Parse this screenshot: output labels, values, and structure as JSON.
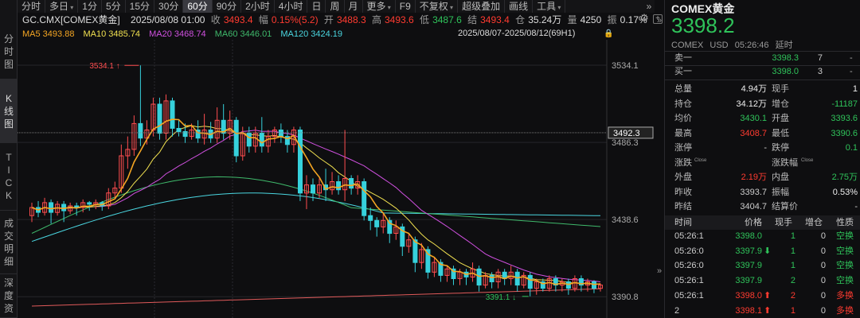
{
  "vtabs": [
    {
      "label": "分时图",
      "chars": [
        "分",
        "时",
        "图"
      ],
      "active": false
    },
    {
      "label": "K线图",
      "chars": [
        "K",
        "线",
        "图"
      ],
      "active": true
    },
    {
      "label": "TICK",
      "chars": [
        "T",
        "I",
        "C",
        "K"
      ],
      "active": false
    },
    {
      "label": "成交明细",
      "chars": [
        "成",
        "交",
        "明",
        "细"
      ],
      "active": false
    },
    {
      "label": "深度资",
      "chars": [
        "深",
        "度",
        "资"
      ],
      "active": false
    }
  ],
  "toolbar": {
    "items": [
      {
        "label": "分时",
        "active": false
      },
      {
        "label": "多日",
        "active": false,
        "caret": true
      },
      {
        "label": "1分",
        "active": false
      },
      {
        "label": "5分",
        "active": false
      },
      {
        "label": "15分",
        "active": false
      },
      {
        "label": "30分",
        "active": false
      },
      {
        "label": "60分",
        "active": true
      },
      {
        "label": "90分",
        "active": false
      },
      {
        "label": "2小时",
        "active": false
      },
      {
        "label": "4小时",
        "active": false
      },
      {
        "label": "日",
        "active": false
      },
      {
        "label": "周",
        "active": false
      },
      {
        "label": "月",
        "active": false
      },
      {
        "label": "更多",
        "active": false,
        "caret": true
      },
      {
        "label": "F9",
        "active": false
      },
      {
        "label": "不复权",
        "active": false,
        "caret": true
      },
      {
        "label": "超级叠加",
        "active": false
      },
      {
        "label": "画线",
        "active": false
      },
      {
        "label": "工具",
        "active": false,
        "caret": true
      }
    ],
    "more_icon": "»"
  },
  "info": {
    "symbol": "GC.CMX[COMEX黄金]",
    "datetime": "2025/08/08 01:00",
    "close_label": "收",
    "close": "3493.4",
    "change_label": "幅",
    "change": "0.15%(5.2)",
    "open_label": "开",
    "open": "3488.3",
    "high_label": "高",
    "high": "3493.6",
    "low_label": "低",
    "low": "3487.6",
    "last_label": "结",
    "last": "3493.4",
    "oi_label": "仓",
    "oi": "35.24万",
    "vol_label": "量",
    "vol": "4250",
    "amp_label": "振",
    "amp": "0.17%",
    "settings_icon": "gear-icon",
    "add_icon": "plus-box-icon"
  },
  "ma": {
    "ma5": "MA5 3493.88",
    "ma10": "MA10 3485.74",
    "ma20": "MA20 3468.74",
    "ma60": "MA60 3446.01",
    "ma120": "MA120 3424.19",
    "range": "2025/08/07-2025/08/12(69H1)",
    "colors": {
      "ma5": "#f5a623",
      "ma10": "#f0e050",
      "ma20": "#d050e0",
      "ma60": "#3fb96b",
      "ma120": "#4ad6e0"
    }
  },
  "chart_data": {
    "type": "candlestick",
    "y_axis_labels": [
      "3534.1",
      "3486.3",
      "3438.6",
      "3390.8"
    ],
    "current_price_tag": "3492.3",
    "high_marker": "3534.1",
    "low_marker": "3391.1",
    "ylim": [
      3385,
      3540
    ],
    "candles": [
      [
        3441,
        3446,
        3437,
        3449
      ],
      [
        3446,
        3443,
        3440,
        3450
      ],
      [
        3443,
        3449,
        3441,
        3452
      ],
      [
        3449,
        3443,
        3436,
        3451
      ],
      [
        3443,
        3448,
        3441,
        3450
      ],
      [
        3448,
        3444,
        3437,
        3450
      ],
      [
        3444,
        3447,
        3442,
        3449
      ],
      [
        3447,
        3446,
        3441,
        3449
      ],
      [
        3446,
        3449,
        3443,
        3451
      ],
      [
        3449,
        3448,
        3444,
        3450
      ],
      [
        3448,
        3449,
        3445,
        3451
      ],
      [
        3449,
        3447,
        3444,
        3450
      ],
      [
        3447,
        3455,
        3445,
        3458
      ],
      [
        3455,
        3458,
        3452,
        3462
      ],
      [
        3458,
        3478,
        3455,
        3485
      ],
      [
        3478,
        3482,
        3470,
        3490
      ],
      [
        3482,
        3498,
        3478,
        3503
      ],
      [
        3498,
        3489,
        3484,
        3534
      ],
      [
        3489,
        3494,
        3485,
        3500
      ],
      [
        3494,
        3510,
        3490,
        3514
      ],
      [
        3510,
        3492,
        3488,
        3514
      ],
      [
        3492,
        3512,
        3488,
        3516
      ],
      [
        3512,
        3495,
        3490,
        3514
      ],
      [
        3495,
        3493,
        3490,
        3500
      ],
      [
        3493,
        3490,
        3486,
        3498
      ],
      [
        3490,
        3494,
        3488,
        3498
      ],
      [
        3494,
        3489,
        3486,
        3500
      ],
      [
        3489,
        3494,
        3485,
        3504
      ],
      [
        3494,
        3489,
        3486,
        3499
      ],
      [
        3489,
        3500,
        3486,
        3508
      ],
      [
        3500,
        3492,
        3488,
        3510
      ],
      [
        3492,
        3500,
        3488,
        3506
      ],
      [
        3500,
        3478,
        3474,
        3502
      ],
      [
        3478,
        3492,
        3475,
        3496
      ],
      [
        3492,
        3484,
        3480,
        3496
      ],
      [
        3484,
        3492,
        3480,
        3496
      ],
      [
        3492,
        3484,
        3480,
        3502
      ],
      [
        3484,
        3490,
        3480,
        3494
      ],
      [
        3490,
        3494,
        3486,
        3496
      ],
      [
        3494,
        3490,
        3486,
        3498
      ],
      [
        3490,
        3485,
        3480,
        3494
      ],
      [
        3485,
        3494,
        3480,
        3496
      ],
      [
        3494,
        3455,
        3450,
        3496
      ],
      [
        3455,
        3460,
        3445,
        3466
      ],
      [
        3460,
        3455,
        3450,
        3464
      ],
      [
        3455,
        3460,
        3452,
        3464
      ],
      [
        3460,
        3457,
        3450,
        3470
      ],
      [
        3457,
        3462,
        3454,
        3468
      ],
      [
        3462,
        3457,
        3454,
        3466
      ],
      [
        3457,
        3464,
        3450,
        3494
      ],
      [
        3464,
        3458,
        3454,
        3466
      ],
      [
        3458,
        3462,
        3454,
        3466
      ],
      [
        3462,
        3441,
        3438,
        3464
      ],
      [
        3441,
        3438,
        3432,
        3446
      ],
      [
        3438,
        3434,
        3428,
        3440
      ],
      [
        3434,
        3438,
        3430,
        3442
      ],
      [
        3438,
        3430,
        3424,
        3440
      ],
      [
        3430,
        3434,
        3426,
        3438
      ],
      [
        3434,
        3422,
        3416,
        3436
      ],
      [
        3422,
        3426,
        3418,
        3430
      ],
      [
        3426,
        3412,
        3406,
        3428
      ],
      [
        3412,
        3420,
        3408,
        3424
      ],
      [
        3420,
        3406,
        3402,
        3422
      ],
      [
        3406,
        3412,
        3403,
        3415
      ],
      [
        3412,
        3404,
        3400,
        3414
      ],
      [
        3404,
        3408,
        3400,
        3410
      ],
      [
        3408,
        3402,
        3398,
        3410
      ],
      [
        3402,
        3406,
        3398,
        3408
      ],
      [
        3406,
        3403,
        3398,
        3408
      ],
      [
        3403,
        3408,
        3400,
        3412
      ],
      [
        3408,
        3398,
        3394,
        3410
      ],
      [
        3398,
        3404,
        3396,
        3406
      ],
      [
        3404,
        3400,
        3396,
        3406
      ],
      [
        3400,
        3406,
        3396,
        3408
      ],
      [
        3406,
        3402,
        3398,
        3408
      ],
      [
        3402,
        3406,
        3398,
        3410
      ],
      [
        3406,
        3398,
        3394,
        3408
      ],
      [
        3398,
        3404,
        3396,
        3406
      ],
      [
        3404,
        3396,
        3391,
        3406
      ],
      [
        3396,
        3400,
        3392,
        3402
      ],
      [
        3400,
        3396,
        3394,
        3402
      ],
      [
        3396,
        3402,
        3394,
        3404
      ],
      [
        3402,
        3398,
        3394,
        3404
      ],
      [
        3398,
        3400,
        3394,
        3402
      ],
      [
        3400,
        3396,
        3392,
        3402
      ],
      [
        3396,
        3402,
        3394,
        3404
      ],
      [
        3402,
        3398,
        3394,
        3404
      ],
      [
        3398,
        3400,
        3394,
        3402
      ],
      [
        3400,
        3396,
        3393,
        3401
      ],
      [
        3396,
        3398,
        3394,
        3399
      ]
    ],
    "up_color": "#ff4d4f",
    "down_color": "#36d1dc"
  },
  "right_edge": {
    "top_arrow": "»",
    "collapse_arrow": "»"
  },
  "panel": {
    "name": "COMEX黄金",
    "price": "3398.2",
    "exchange": "COMEX",
    "currency": "USD",
    "time": "05:26:46",
    "delay": "延时",
    "sell1": {
      "label": "卖一",
      "price": "3398.3",
      "qty": "7",
      "delta": "-"
    },
    "buy1": {
      "label": "买一",
      "price": "3398.0",
      "qty": "3",
      "delta": "-"
    },
    "stats": [
      {
        "l1": "总量",
        "v1": "4.94万",
        "c1": "#eee",
        "l2": "现手",
        "v2": "1",
        "c2": "#eee"
      },
      {
        "l1": "持仓",
        "v1": "34.12万",
        "c1": "#eee",
        "l2": "增仓",
        "v2": "-11187",
        "c2": "#2fc35a"
      },
      {
        "l1": "均价",
        "v1": "3430.1",
        "c1": "#2fc35a",
        "l2": "开盘",
        "v2": "3393.6",
        "c2": "#2fc35a"
      },
      {
        "l1": "最高",
        "v1": "3408.7",
        "c1": "#ff3b30",
        "l2": "最低",
        "v2": "3390.6",
        "c2": "#2fc35a"
      },
      {
        "l1": "涨停",
        "v1": "-",
        "c1": "#ccc",
        "l2": "跌停",
        "v2": "0.1",
        "c2": "#2fc35a"
      },
      {
        "l1": "涨跌",
        "v1": "",
        "c1": "#ccc",
        "l2": "涨跌幅",
        "v2": "",
        "c2": "#ccc",
        "sup1": "Close",
        "sup2": "Close"
      },
      {
        "l1": "外盘",
        "v1": "2.19万",
        "c1": "#ff3b30",
        "l2": "内盘",
        "v2": "2.75万",
        "c2": "#2fc35a"
      },
      {
        "l1": "昨收",
        "v1": "3393.7",
        "c1": "#ccc",
        "l2": "振幅",
        "v2": "0.53%",
        "c2": "#eee"
      },
      {
        "l1": "昨结",
        "v1": "3404.7",
        "c1": "#ccc",
        "l2": "结算价",
        "v2": "-",
        "c2": "#ccc"
      }
    ],
    "trade_headers": [
      "时间",
      "价格",
      "现手",
      "增仓",
      "性质"
    ],
    "trades": [
      {
        "time": "05:26:1",
        "price": "3398.0",
        "arrow": "",
        "qty": "1",
        "oi": "0",
        "nature": "空换",
        "pc": "#2fc35a",
        "qc": "#2fc35a",
        "nc": "#2fc35a"
      },
      {
        "time": "05:26:0",
        "price": "3397.9",
        "arrow": "⬇",
        "qty": "1",
        "oi": "0",
        "nature": "空换",
        "pc": "#2fc35a",
        "qc": "#2fc35a",
        "nc": "#2fc35a"
      },
      {
        "time": "05:26:0",
        "price": "3397.9",
        "arrow": "",
        "qty": "1",
        "oi": "0",
        "nature": "空换",
        "pc": "#2fc35a",
        "qc": "#2fc35a",
        "nc": "#2fc35a"
      },
      {
        "time": "05:26:1",
        "price": "3397.9",
        "arrow": "",
        "qty": "2",
        "oi": "0",
        "nature": "空换",
        "pc": "#2fc35a",
        "qc": "#2fc35a",
        "nc": "#2fc35a"
      },
      {
        "time": "05:26:1",
        "price": "3398.0",
        "arrow": "⬆",
        "qty": "2",
        "oi": "0",
        "nature": "多换",
        "pc": "#ff3b30",
        "qc": "#ff3b30",
        "nc": "#ff3b30"
      },
      {
        "time": "2",
        "price": "3398.1",
        "arrow": "⬆",
        "qty": "1",
        "oi": "0",
        "nature": "多换",
        "pc": "#ff3b30",
        "qc": "#ff3b30",
        "nc": "#ff3b30"
      }
    ]
  }
}
